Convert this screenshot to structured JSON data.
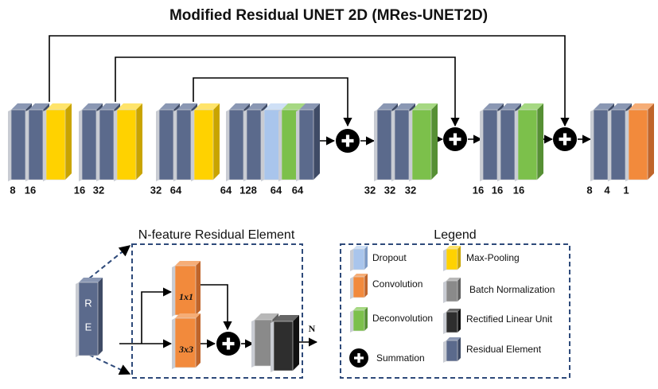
{
  "title": "Modified Residual UNET 2D (MRes-UNET2D)",
  "layer_groups": [
    [
      8,
      16
    ],
    [
      16,
      32
    ],
    [
      32,
      64
    ],
    [
      64,
      128,
      64,
      64
    ],
    [
      32,
      32,
      32
    ],
    [
      16,
      16,
      16
    ],
    [
      8,
      4,
      1
    ]
  ],
  "residual_element": {
    "title": "N-feature Residual Element",
    "block_letters": [
      "R",
      "E"
    ],
    "conv_labels": [
      "1x1",
      "3x3"
    ],
    "output_label": "N"
  },
  "legend": {
    "title": "Legend",
    "items": [
      "Dropout",
      "Max-Pooling",
      "Convolution",
      "Batch Normalization",
      "Deconvolution",
      "Rectified Linear Unit",
      "Summation",
      "Residual Element"
    ]
  }
}
